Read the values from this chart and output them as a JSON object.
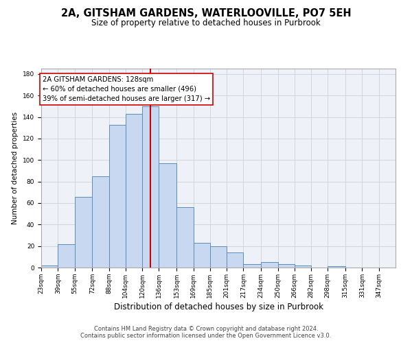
{
  "title": "2A, GITSHAM GARDENS, WATERLOOVILLE, PO7 5EH",
  "subtitle": "Size of property relative to detached houses in Purbrook",
  "xlabel": "Distribution of detached houses by size in Purbrook",
  "ylabel": "Number of detached properties",
  "bin_labels": [
    "23sqm",
    "39sqm",
    "55sqm",
    "72sqm",
    "88sqm",
    "104sqm",
    "120sqm",
    "136sqm",
    "153sqm",
    "169sqm",
    "185sqm",
    "201sqm",
    "217sqm",
    "234sqm",
    "250sqm",
    "266sqm",
    "282sqm",
    "298sqm",
    "315sqm",
    "331sqm",
    "347sqm"
  ],
  "bin_edges": [
    23,
    39,
    55,
    72,
    88,
    104,
    120,
    136,
    153,
    169,
    185,
    201,
    217,
    234,
    250,
    266,
    282,
    298,
    315,
    331,
    347,
    363
  ],
  "heights": [
    2,
    22,
    66,
    85,
    133,
    143,
    150,
    97,
    56,
    23,
    20,
    14,
    3,
    5,
    3,
    2,
    0,
    1,
    0,
    0,
    0
  ],
  "bar_color": "#c8d8f0",
  "bar_edge_color": "#5b8db8",
  "vline_x": 128,
  "vline_color": "#cc0000",
  "annotation_text": "2A GITSHAM GARDENS: 128sqm\n← 60% of detached houses are smaller (496)\n39% of semi-detached houses are larger (317) →",
  "annotation_box_color": "#ffffff",
  "annotation_box_edge_color": "#cc0000",
  "ylim": [
    0,
    185
  ],
  "yticks": [
    0,
    20,
    40,
    60,
    80,
    100,
    120,
    140,
    160,
    180
  ],
  "grid_color": "#d0d0d0",
  "bg_color": "#eef2f8",
  "footer_text": "Contains HM Land Registry data © Crown copyright and database right 2024.\nContains public sector information licensed under the Open Government Licence v3.0.",
  "title_fontsize": 10.5,
  "subtitle_fontsize": 8.5,
  "xlabel_fontsize": 8.5,
  "ylabel_fontsize": 7.5,
  "tick_fontsize": 6.5,
  "annot_fontsize": 7.2,
  "footer_fontsize": 6.0
}
